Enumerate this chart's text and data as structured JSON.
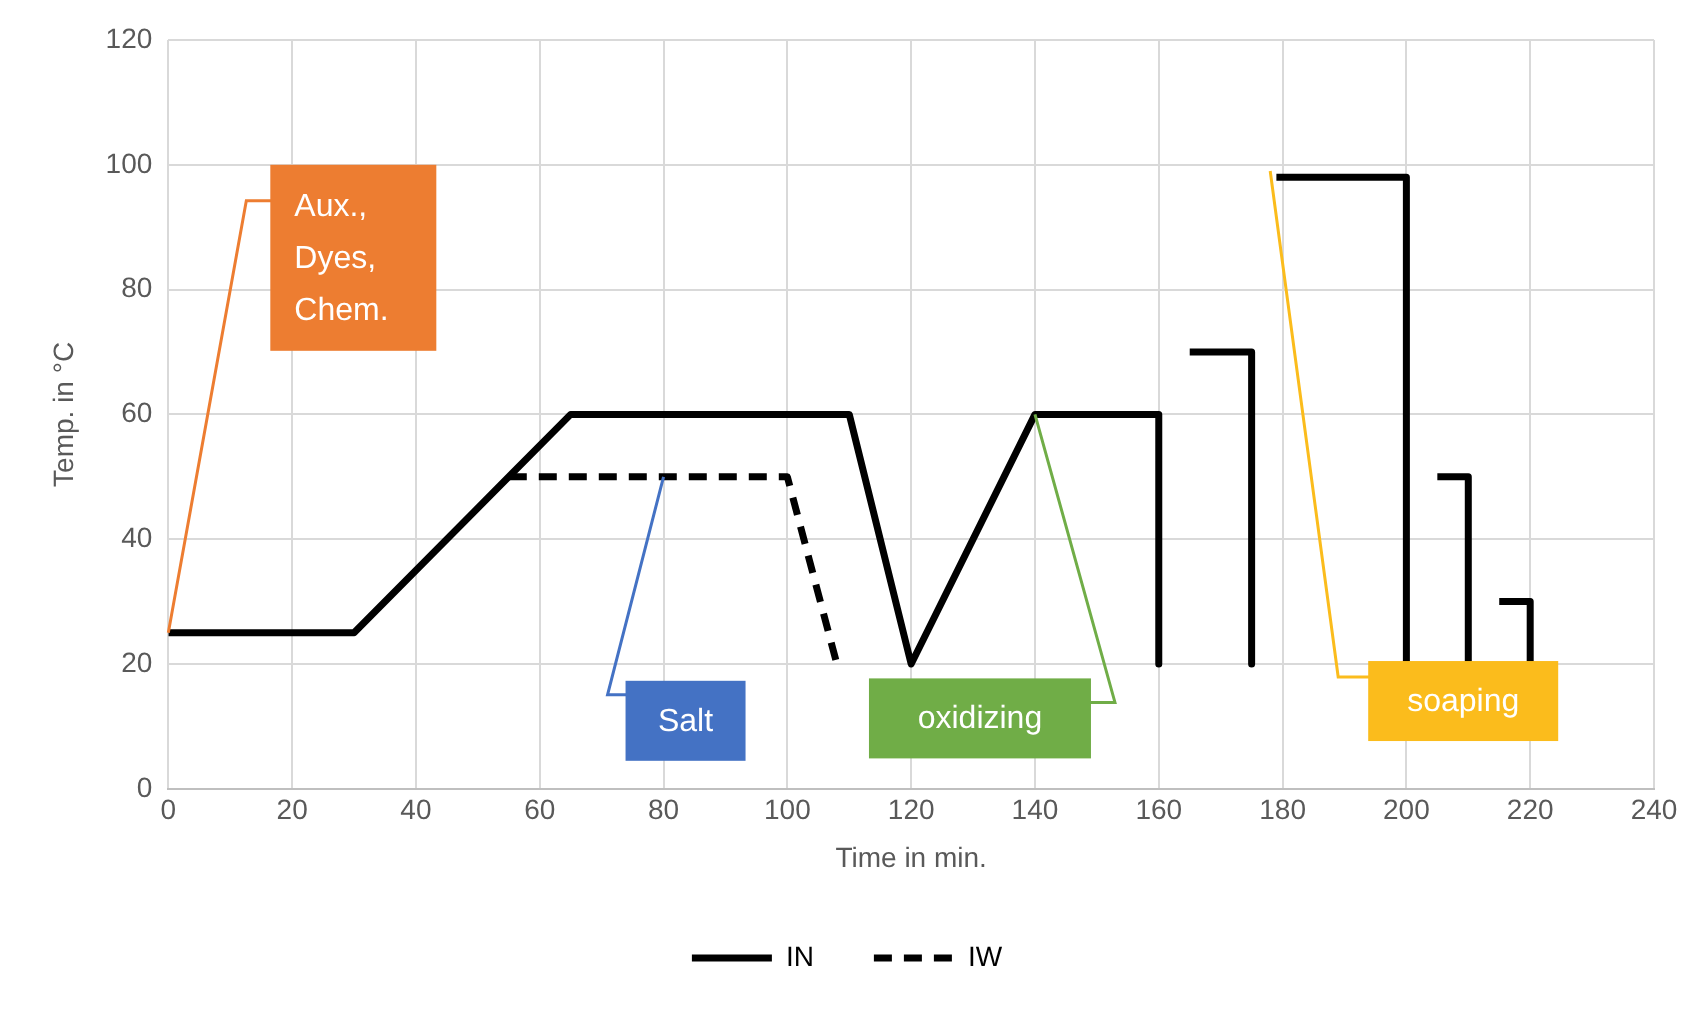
{
  "chart_data": {
    "type": "line",
    "xlabel": "Time in min.",
    "ylabel": "Temp. in °C",
    "xlim": [
      0,
      240
    ],
    "xticks": [
      0,
      20,
      40,
      60,
      80,
      100,
      120,
      140,
      160,
      180,
      200,
      220,
      240
    ],
    "ylim": [
      0,
      120
    ],
    "yticks": [
      0,
      20,
      40,
      60,
      80,
      100,
      120
    ],
    "grid": true,
    "legend": "bottom",
    "marker": "none",
    "series": [
      {
        "name": "IN",
        "color": "#000000",
        "line_style": "solid",
        "x": [
          0,
          30,
          65,
          110,
          120,
          140,
          160,
          160,
          162,
          165,
          175,
          175,
          177,
          179,
          200,
          200,
          202,
          205,
          210,
          210,
          212,
          215,
          220,
          220
        ],
        "values": [
          25,
          25,
          60,
          60,
          20,
          60,
          60,
          20,
          null,
          70,
          70,
          20,
          null,
          98,
          98,
          20,
          null,
          50,
          50,
          20,
          null,
          30,
          30,
          20
        ]
      },
      {
        "name": "IW",
        "color": "#000000",
        "line_style": "dashed",
        "x": [
          55,
          100,
          108
        ],
        "values": [
          50,
          50,
          20
        ]
      }
    ],
    "annotations": [
      {
        "text": "Aux., Dyes, Chem.",
        "x": 0,
        "y": 25
      },
      {
        "text": "Salt",
        "x": 80,
        "y": 50
      },
      {
        "text": "oxidizing",
        "x": 140,
        "y": 60
      },
      {
        "text": "soaping",
        "x": 178,
        "y": 99
      }
    ]
  }
}
